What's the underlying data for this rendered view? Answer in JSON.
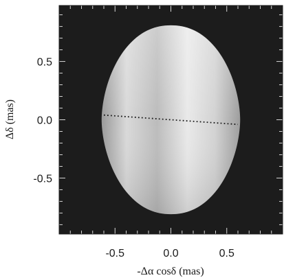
{
  "chart_data": {
    "type": "image",
    "xlabel": "-Δα cosδ (mas)",
    "ylabel": "Δδ (mas)",
    "xlim": [
      -1.0,
      1.0
    ],
    "ylim": [
      -0.98,
      0.98
    ],
    "x_ticks": [
      {
        "value": -0.5,
        "label": "-0.5"
      },
      {
        "value": 0.0,
        "label": "0.0"
      },
      {
        "value": 0.5,
        "label": "0.5"
      }
    ],
    "y_ticks": [
      {
        "value": 0.5,
        "label": "0.5"
      },
      {
        "value": 0.0,
        "label": "0.0"
      },
      {
        "value": -0.5,
        "label": "-0.5"
      }
    ],
    "minor_tick_step": 0.1,
    "background_color": "#1c1c1c",
    "shape": {
      "name": "star-disk",
      "center": [
        0.0,
        0.0
      ],
      "semi_major_y": 0.81,
      "semi_minor_x": 0.62,
      "shading": "limb-darkened-gray"
    },
    "rotation_axis": {
      "style": "dotted",
      "from": [
        -0.6,
        0.04
      ],
      "to": [
        0.6,
        -0.04
      ]
    }
  }
}
